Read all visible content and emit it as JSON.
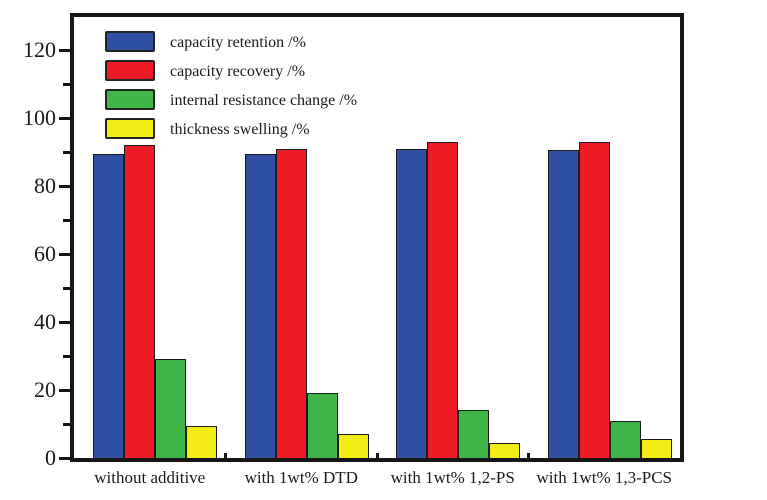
{
  "chart_data": {
    "type": "bar",
    "title": "",
    "xlabel": "",
    "ylabel": "",
    "categories": [
      "without additive",
      "with 1wt% DTD",
      "with 1wt% 1,2-PS",
      "with 1wt% 1,3-PCS"
    ],
    "series": [
      {
        "name": "capacity retention /%",
        "color": "#2f4fa2",
        "values": [
          89.5,
          89.5,
          91,
          90.5
        ]
      },
      {
        "name": "capacity recovery /%",
        "color": "#ed1c24",
        "values": [
          92,
          91,
          93,
          93
        ]
      },
      {
        "name": "internal resistance change /%",
        "color": "#42b549",
        "values": [
          29,
          19,
          14,
          11
        ]
      },
      {
        "name": "thickness swelling /%",
        "color": "#f4ea16",
        "values": [
          9.5,
          7,
          4.5,
          5.5
        ]
      }
    ],
    "ylim": [
      0,
      130
    ],
    "yticks": [
      0,
      20,
      40,
      60,
      80,
      100,
      120
    ],
    "y_minor_ticks": [
      10,
      30,
      50,
      70,
      90,
      110
    ],
    "grid": false,
    "legend_position": "top-left-inside",
    "bar_edge_color": "#1c1c1c",
    "axis_color": "#161616",
    "background_color": "#ffffff"
  }
}
